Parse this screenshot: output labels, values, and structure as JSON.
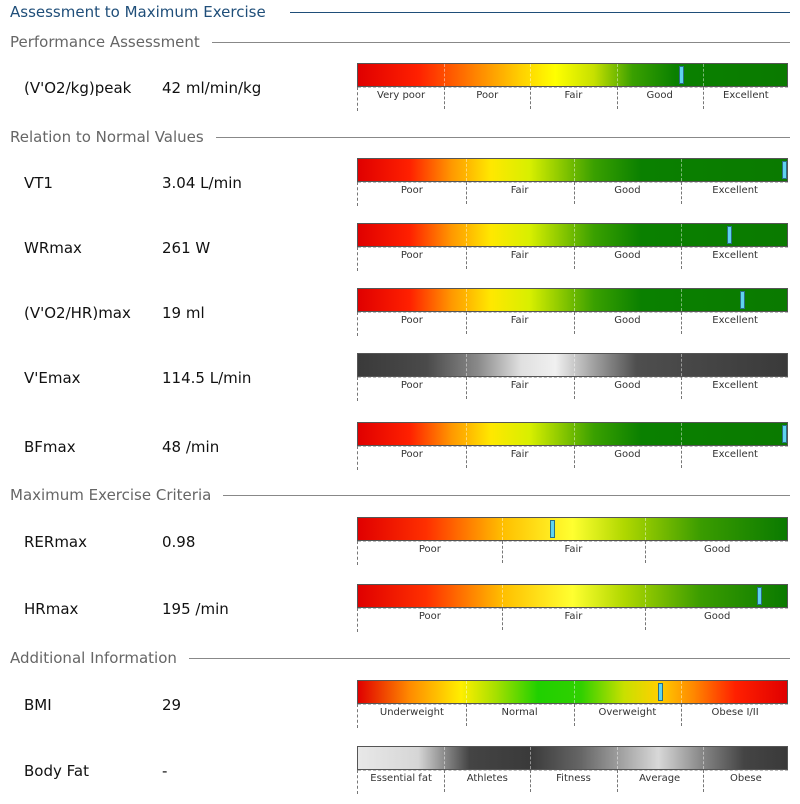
{
  "title": "Assessment to Maximum Exercise",
  "sections": {
    "performance": "Performance Assessment",
    "normal": "Relation to Normal Values",
    "criteria": "Maximum Exercise Criteria",
    "additional": "Additional Information"
  },
  "rows": [
    {
      "label": "(V'O2/kg)peak",
      "value": "42 ml/min/kg",
      "scale": [
        "Very poor",
        "Poor",
        "Fair",
        "Good",
        "Excellent"
      ],
      "marker_fraction": 0.75,
      "colors": "red-green"
    },
    {
      "label": "VT1",
      "value": "3.04 L/min",
      "scale": [
        "Poor",
        "Fair",
        "Good",
        "Excellent"
      ],
      "marker_fraction": 0.99,
      "colors": "red-green"
    },
    {
      "label": "WRmax",
      "value": "261 W",
      "scale": [
        "Poor",
        "Fair",
        "Good",
        "Excellent"
      ],
      "marker_fraction": 0.86,
      "colors": "red-green"
    },
    {
      "label": "(V'O2/HR)max",
      "value": "19 ml",
      "scale": [
        "Poor",
        "Fair",
        "Good",
        "Excellent"
      ],
      "marker_fraction": 0.89,
      "colors": "red-green"
    },
    {
      "label": "V'Emax",
      "value": "114.5 L/min",
      "scale": [
        "Poor",
        "Fair",
        "Good",
        "Excellent"
      ],
      "marker_fraction": null,
      "colors": "gray"
    },
    {
      "label": "BFmax",
      "value": "48 /min",
      "scale": [
        "Poor",
        "Fair",
        "Good",
        "Excellent"
      ],
      "marker_fraction": 0.99,
      "colors": "red-green"
    },
    {
      "label": "RERmax",
      "value": "0.98",
      "scale": [
        "Poor",
        "Fair",
        "Good"
      ],
      "marker_fraction": 0.45,
      "colors": "red-green"
    },
    {
      "label": "HRmax",
      "value": "195 /min",
      "scale": [
        "Poor",
        "Fair",
        "Good"
      ],
      "marker_fraction": 0.93,
      "colors": "red-green"
    },
    {
      "label": "BMI",
      "value": "29",
      "scale": [
        "Underweight",
        "Normal",
        "Overweight",
        "Obese I/II"
      ],
      "marker_fraction": 0.7,
      "colors": "bmi"
    },
    {
      "label": "Body Fat",
      "value": "-",
      "scale": [
        "Essential fat",
        "Athletes",
        "Fitness",
        "Average",
        "Obese"
      ],
      "marker_fraction": null,
      "colors": "gray-fat"
    }
  ]
}
